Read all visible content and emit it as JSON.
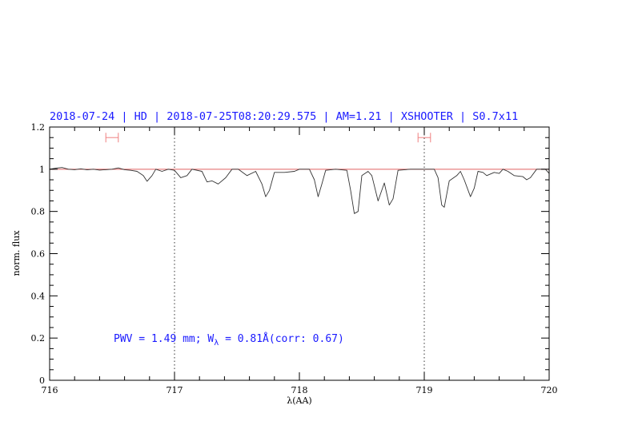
{
  "chart_data": {
    "type": "line",
    "title": "2018-07-24 | HD | 2018-07-25T08:20:29.575 | AM=1.21 | XSHOOTER | S0.7x11",
    "xlabel": "λ(AA)",
    "ylabel": "norm. flux",
    "xlim": [
      716,
      720
    ],
    "ylim": [
      0,
      1.2
    ],
    "xticks": [
      "716",
      "717",
      "718",
      "719",
      "720"
    ],
    "yticks": [
      "0",
      "0.2",
      "0.4",
      "0.6",
      "0.8",
      "1",
      "1.2"
    ],
    "x_minor_step": 0.2,
    "y_minor_step": 0.05,
    "grid": false,
    "reference_line": {
      "y": 1.0,
      "color": "#e06060"
    },
    "vertical_markers": [
      717.0,
      719.0
    ],
    "range_markers": [
      {
        "x": [
          716.45,
          716.55
        ],
        "y": 1.15,
        "color": "#f08080"
      },
      {
        "x": [
          718.95,
          719.05
        ],
        "y": 1.15,
        "color": "#f08080"
      }
    ],
    "annotation": {
      "pre": "PWV = 1.49 mm; W",
      "sub": "λ",
      "post": " = 0.81Å(corr: 0.67)",
      "color": "#1a1aff"
    },
    "series": [
      {
        "color": "#333333",
        "x": [
          716.0,
          716.05,
          716.1,
          716.15,
          716.2,
          716.25,
          716.3,
          716.35,
          716.4,
          716.45,
          716.5,
          716.55,
          716.6,
          716.65,
          716.7,
          716.75,
          716.78,
          716.82,
          716.85,
          716.9,
          716.95,
          717.0,
          717.05,
          717.1,
          717.14,
          717.22,
          717.26,
          717.3,
          717.35,
          717.41,
          717.46,
          717.51,
          717.58,
          717.65,
          717.7,
          717.73,
          717.76,
          717.8,
          717.88,
          717.96,
          718.0,
          718.08,
          718.12,
          718.15,
          718.18,
          718.21,
          718.29,
          718.38,
          718.41,
          718.44,
          718.47,
          718.5,
          718.55,
          718.58,
          718.63,
          718.68,
          718.72,
          718.75,
          718.79,
          718.89,
          718.96,
          719.0,
          719.08,
          719.11,
          719.14,
          719.16,
          719.2,
          719.26,
          719.29,
          719.32,
          719.37,
          719.4,
          719.43,
          719.47,
          719.5,
          719.56,
          719.6,
          719.63,
          719.67,
          719.72,
          719.79,
          719.82,
          719.85,
          719.9,
          719.97,
          720.0
        ],
        "y": [
          1.0,
          1.005,
          1.008,
          1.0,
          0.998,
          1.002,
          0.997,
          1.0,
          0.996,
          0.998,
          1.0,
          1.006,
          0.998,
          0.995,
          0.99,
          0.97,
          0.943,
          0.97,
          1.0,
          0.99,
          1.0,
          0.995,
          0.96,
          0.97,
          1.0,
          0.99,
          0.94,
          0.945,
          0.93,
          0.96,
          1.0,
          1.0,
          0.97,
          0.99,
          0.93,
          0.87,
          0.9,
          0.985,
          0.985,
          0.99,
          1.0,
          1.0,
          0.95,
          0.87,
          0.93,
          0.995,
          1.0,
          0.995,
          0.9,
          0.79,
          0.8,
          0.97,
          0.99,
          0.97,
          0.85,
          0.935,
          0.83,
          0.86,
          0.995,
          1.0,
          1.0,
          1.0,
          1.0,
          0.96,
          0.83,
          0.82,
          0.945,
          0.97,
          0.99,
          0.95,
          0.87,
          0.91,
          0.99,
          0.985,
          0.97,
          0.985,
          0.98,
          1.0,
          0.99,
          0.97,
          0.965,
          0.95,
          0.96,
          1.0,
          1.0,
          0.98
        ]
      }
    ]
  }
}
